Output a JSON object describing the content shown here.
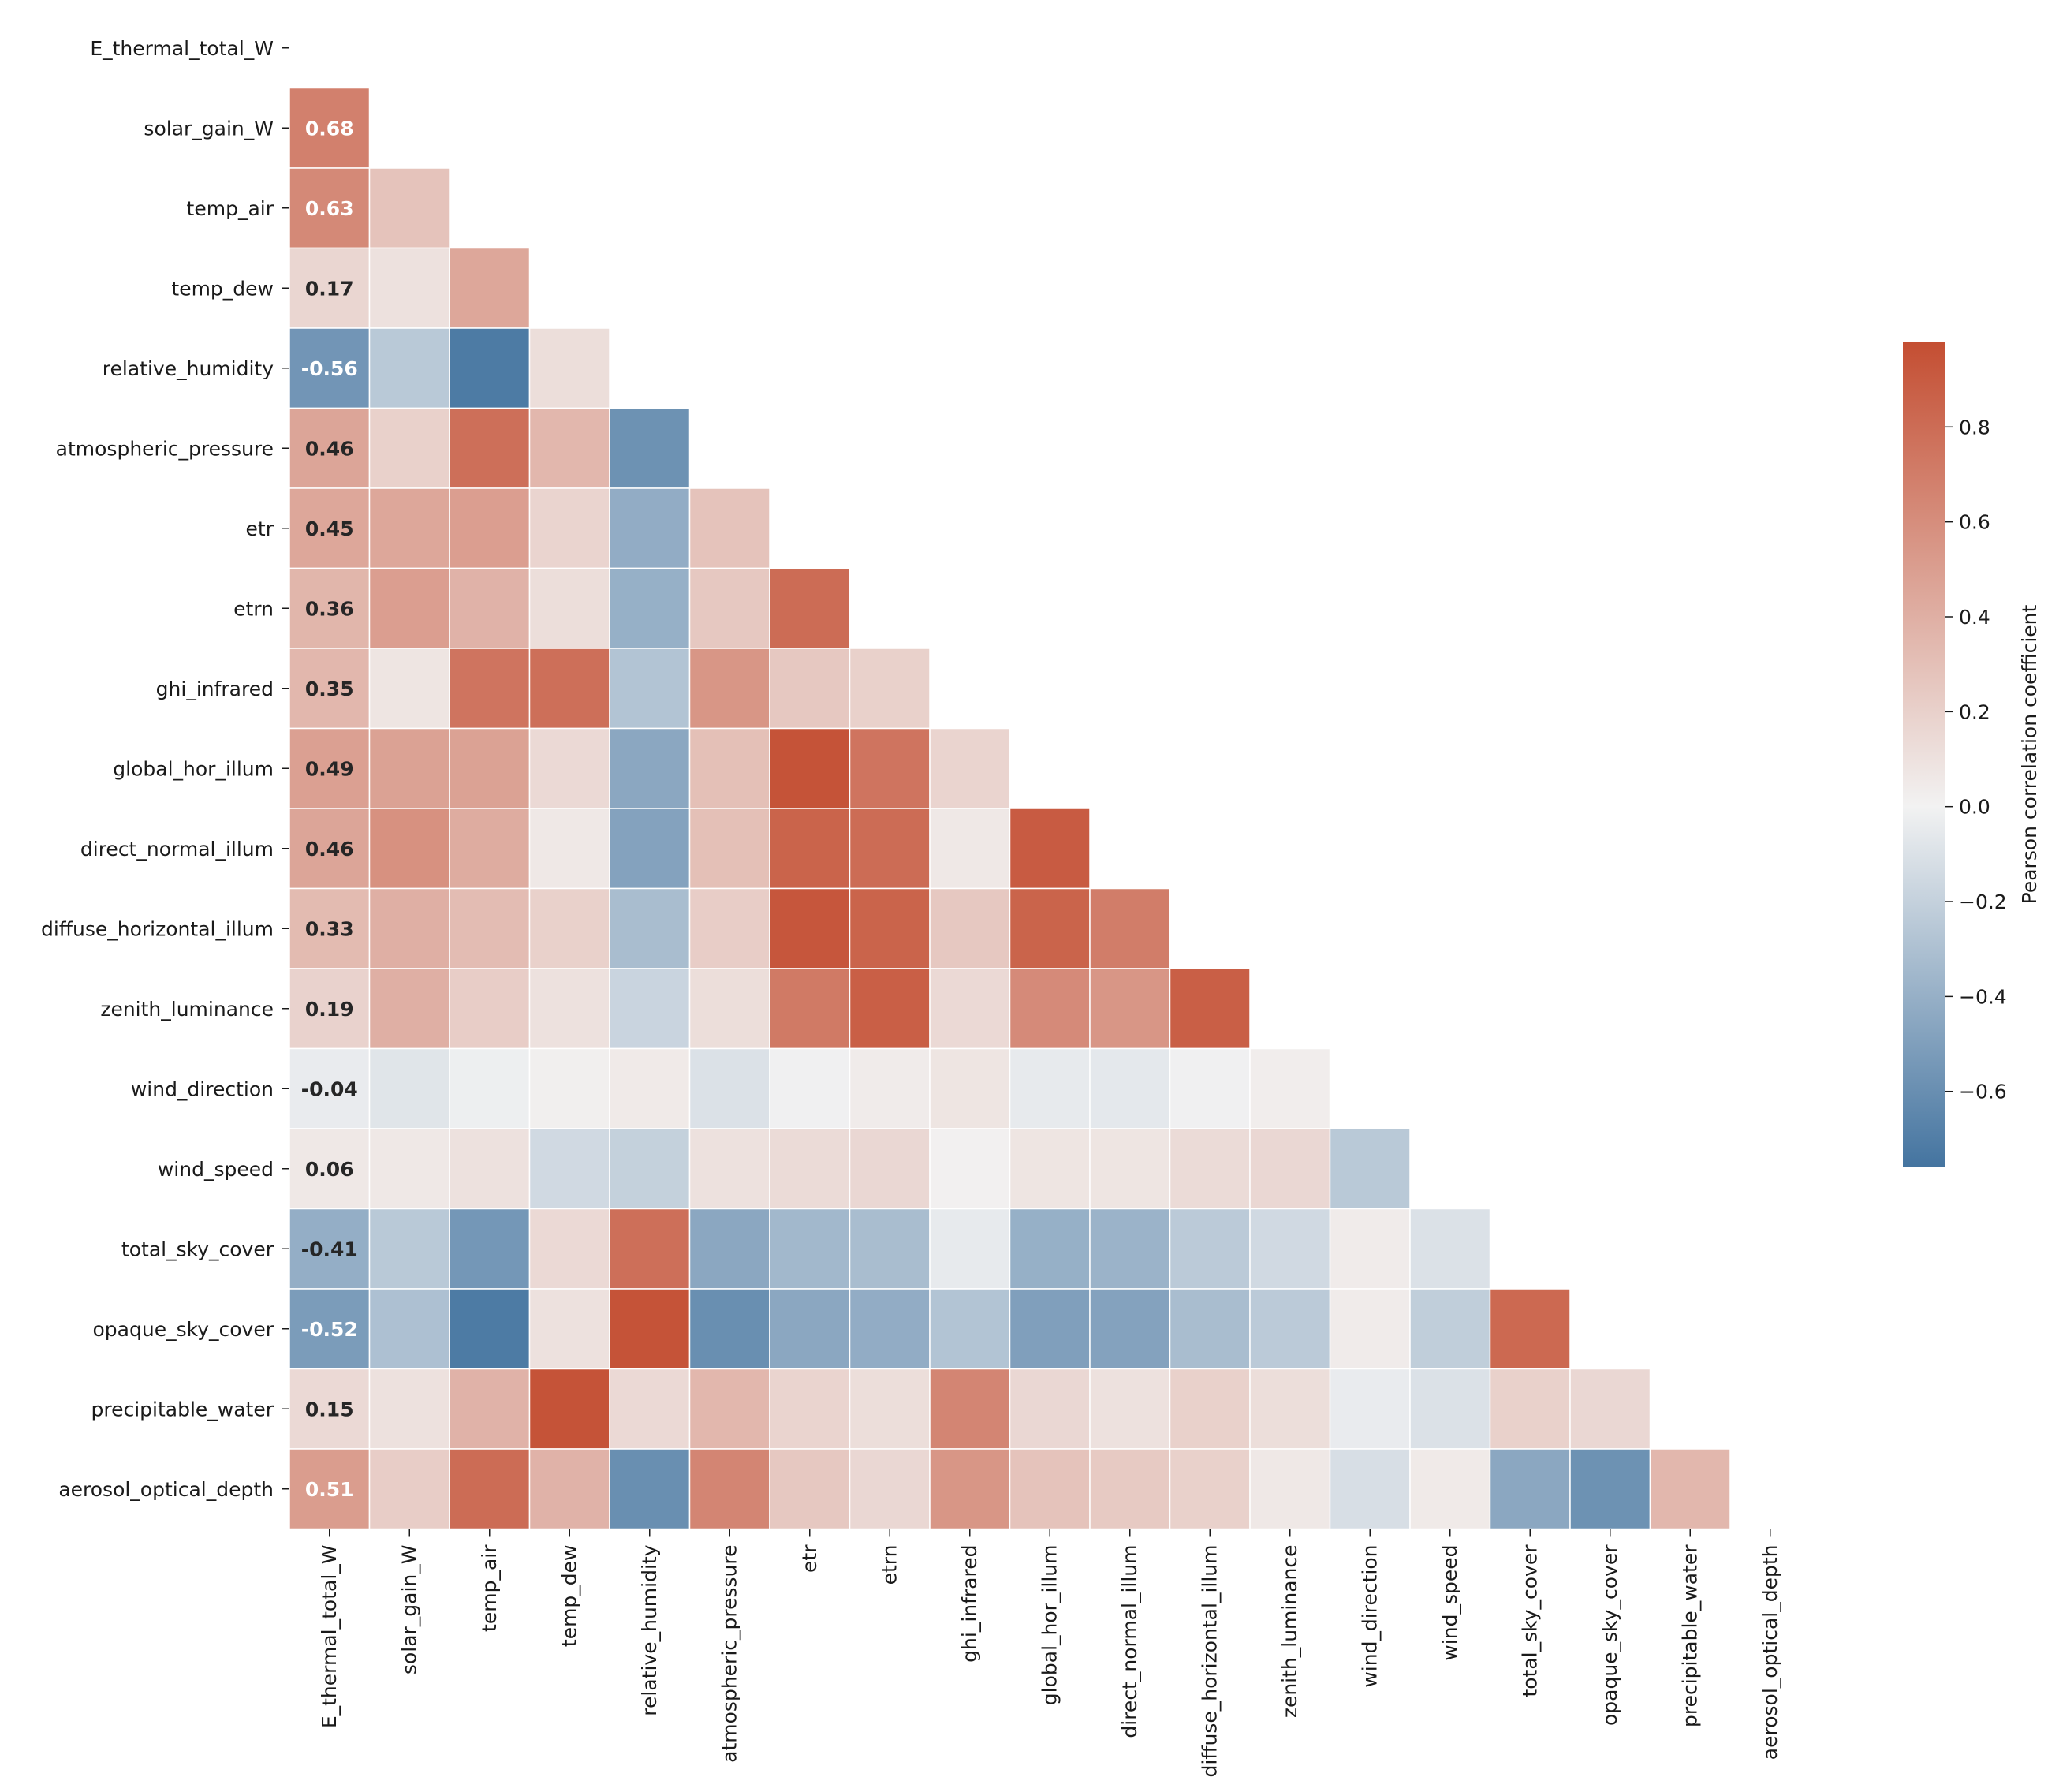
{
  "chart_data": {
    "type": "heatmap",
    "title": "",
    "xlabel": "",
    "ylabel": "",
    "mask": "upper-triangle-including-diagonal",
    "variables": [
      "E_thermal_total_W",
      "solar_gain_W",
      "temp_air",
      "temp_dew",
      "relative_humidity",
      "atmospheric_pressure",
      "etr",
      "etrn",
      "ghi_infrared",
      "global_hor_illum",
      "direct_normal_illum",
      "diffuse_horizontal_illum",
      "zenith_luminance",
      "wind_direction",
      "wind_speed",
      "total_sky_cover",
      "opaque_sky_cover",
      "precipitable_water",
      "aerosol_optical_depth"
    ],
    "annotated_column": 0,
    "annotations": [
      "0.68",
      "0.63",
      "0.17",
      "-0.56",
      "0.46",
      "0.45",
      "0.36",
      "0.35",
      "0.49",
      "0.46",
      "0.33",
      "0.19",
      "-0.04",
      "0.06",
      "-0.41",
      "-0.52",
      "0.15",
      "0.51"
    ],
    "matrix": [
      [],
      [
        0.68
      ],
      [
        0.63,
        0.28
      ],
      [
        0.17,
        0.1,
        0.45
      ],
      [
        -0.56,
        -0.25,
        -0.72,
        0.12
      ],
      [
        0.46,
        0.2,
        0.78,
        0.35,
        -0.58
      ],
      [
        0.45,
        0.45,
        0.5,
        0.18,
        -0.42,
        0.28
      ],
      [
        0.36,
        0.5,
        0.38,
        0.12,
        -0.4,
        0.25,
        0.8
      ],
      [
        0.35,
        0.08,
        0.75,
        0.78,
        -0.28,
        0.55,
        0.25,
        0.2
      ],
      [
        0.49,
        0.48,
        0.48,
        0.15,
        -0.45,
        0.3,
        0.95,
        0.75,
        0.18
      ],
      [
        0.46,
        0.58,
        0.42,
        0.06,
        -0.48,
        0.3,
        0.85,
        0.8,
        0.06,
        0.9
      ],
      [
        0.33,
        0.4,
        0.32,
        0.2,
        -0.32,
        0.22,
        0.93,
        0.85,
        0.25,
        0.85,
        0.7
      ],
      [
        0.19,
        0.4,
        0.22,
        0.1,
        -0.18,
        0.12,
        0.72,
        0.88,
        0.15,
        0.62,
        0.55,
        0.88
      ],
      [
        -0.04,
        -0.08,
        -0.02,
        0.02,
        0.05,
        -0.1,
        -0.01,
        0.04,
        0.08,
        -0.05,
        -0.06,
        -0.01,
        0.03
      ],
      [
        0.06,
        0.06,
        0.1,
        -0.15,
        -0.2,
        0.1,
        0.14,
        0.16,
        0.01,
        0.08,
        0.08,
        0.14,
        0.16,
        -0.25
      ],
      [
        -0.41,
        -0.25,
        -0.55,
        0.15,
        0.78,
        -0.45,
        -0.35,
        -0.32,
        -0.05,
        -0.4,
        -0.38,
        -0.24,
        -0.15,
        0.04,
        -0.1
      ],
      [
        -0.52,
        -0.3,
        -0.72,
        0.1,
        0.95,
        -0.6,
        -0.45,
        -0.42,
        -0.28,
        -0.5,
        -0.48,
        -0.32,
        -0.24,
        0.04,
        -0.22,
        0.82
      ],
      [
        0.15,
        0.1,
        0.38,
        0.95,
        0.15,
        0.35,
        0.18,
        0.12,
        0.65,
        0.16,
        0.1,
        0.2,
        0.12,
        -0.04,
        -0.1,
        0.2,
        0.16
      ],
      [
        0.51,
        0.22,
        0.8,
        0.38,
        -0.6,
        0.65,
        0.25,
        0.16,
        0.55,
        0.28,
        0.24,
        0.2,
        0.06,
        -0.12,
        0.05,
        -0.45,
        -0.58,
        0.35
      ]
    ],
    "vmin": -0.76,
    "vmax": 0.98,
    "colormap": {
      "negative": "#4474a0",
      "center": "#f2f2f2",
      "positive": "#c44e32"
    },
    "colorbar": {
      "label": "Pearson correlation coefficient",
      "ticks": [
        -0.6,
        -0.4,
        -0.2,
        0.0,
        0.2,
        0.4,
        0.6,
        0.8
      ],
      "tick_labels": [
        "−0.6",
        "−0.4",
        "−0.2",
        "0.0",
        "0.2",
        "0.4",
        "0.6",
        "0.8"
      ]
    }
  }
}
